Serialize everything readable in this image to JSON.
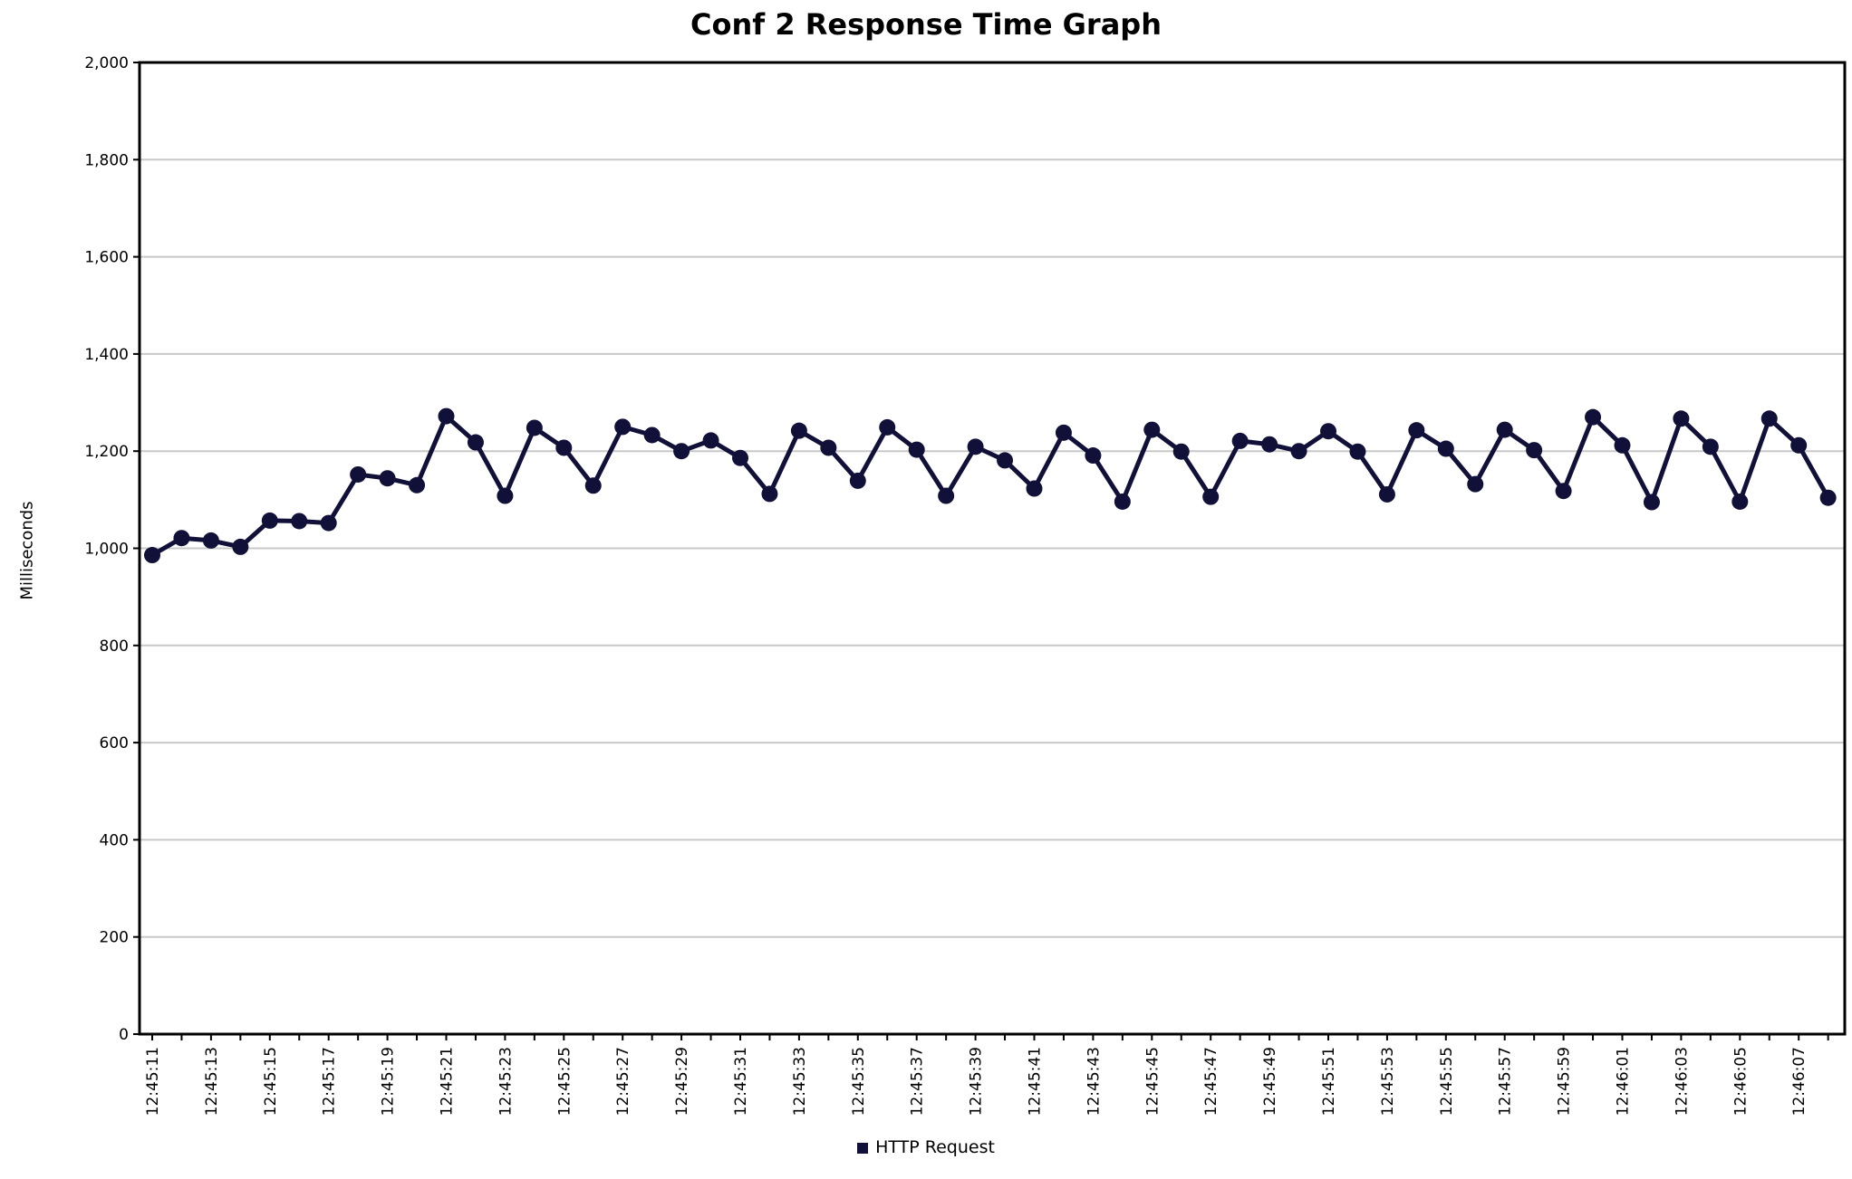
{
  "chart_data": {
    "type": "line",
    "title": "Conf 2 Response Time Graph",
    "xlabel": "",
    "ylabel": "Milliseconds",
    "ylim": [
      0,
      2000
    ],
    "yticks": [
      0,
      200,
      400,
      600,
      800,
      1000,
      1200,
      1400,
      1600,
      1800,
      2000
    ],
    "ytick_labels": [
      "0",
      "200",
      "400",
      "600",
      "800",
      "1,000",
      "1,200",
      "1,400",
      "1,600",
      "1,800",
      "2,000"
    ],
    "x_tick_labels": [
      "12:45:11",
      "12:45:13",
      "12:45:15",
      "12:45:17",
      "12:45:19",
      "12:45:21",
      "12:45:23",
      "12:45:25",
      "12:45:27",
      "12:45:29",
      "12:45:31",
      "12:45:33",
      "12:45:35",
      "12:45:37",
      "12:45:39",
      "12:45:41",
      "12:45:43",
      "12:45:45",
      "12:45:47",
      "12:45:49",
      "12:45:51",
      "12:45:53",
      "12:45:55",
      "12:45:57",
      "12:45:59",
      "12:46:01",
      "12:46:03",
      "12:46:05",
      "12:46:07"
    ],
    "grid": true,
    "legend_position": "bottom",
    "series": [
      {
        "name": "HTTP Request",
        "color": "#101038",
        "x": [
          "12:45:11",
          "12:45:12",
          "12:45:13",
          "12:45:14",
          "12:45:15",
          "12:45:16",
          "12:45:17",
          "12:45:18",
          "12:45:19",
          "12:45:20",
          "12:45:21",
          "12:45:22",
          "12:45:23",
          "12:45:24",
          "12:45:25",
          "12:45:26",
          "12:45:27",
          "12:45:28",
          "12:45:29",
          "12:45:30",
          "12:45:31",
          "12:45:32",
          "12:45:33",
          "12:45:34",
          "12:45:35",
          "12:45:36",
          "12:45:37",
          "12:45:38",
          "12:45:39",
          "12:45:40",
          "12:45:41",
          "12:45:42",
          "12:45:43",
          "12:45:44",
          "12:45:45",
          "12:45:46",
          "12:45:47",
          "12:45:48",
          "12:45:49",
          "12:45:50",
          "12:45:51",
          "12:45:52",
          "12:45:53",
          "12:45:54",
          "12:45:55",
          "12:45:56",
          "12:45:57",
          "12:45:58",
          "12:45:59",
          "12:46:00",
          "12:46:01",
          "12:46:02",
          "12:46:03",
          "12:46:04",
          "12:46:05",
          "12:46:06",
          "12:46:07",
          "12:46:08"
        ],
        "values": [
          986,
          1021,
          1016,
          1003,
          1057,
          1056,
          1052,
          1152,
          1144,
          1130,
          1272,
          1218,
          1108,
          1248,
          1207,
          1129,
          1250,
          1233,
          1200,
          1222,
          1186,
          1112,
          1242,
          1207,
          1139,
          1249,
          1203,
          1108,
          1209,
          1181,
          1123,
          1238,
          1191,
          1096,
          1244,
          1199,
          1106,
          1221,
          1214,
          1200,
          1241,
          1199,
          1111,
          1243,
          1205,
          1132,
          1244,
          1202,
          1118,
          1270,
          1212,
          1095,
          1267,
          1209,
          1096,
          1267,
          1212,
          1104
        ]
      }
    ]
  }
}
